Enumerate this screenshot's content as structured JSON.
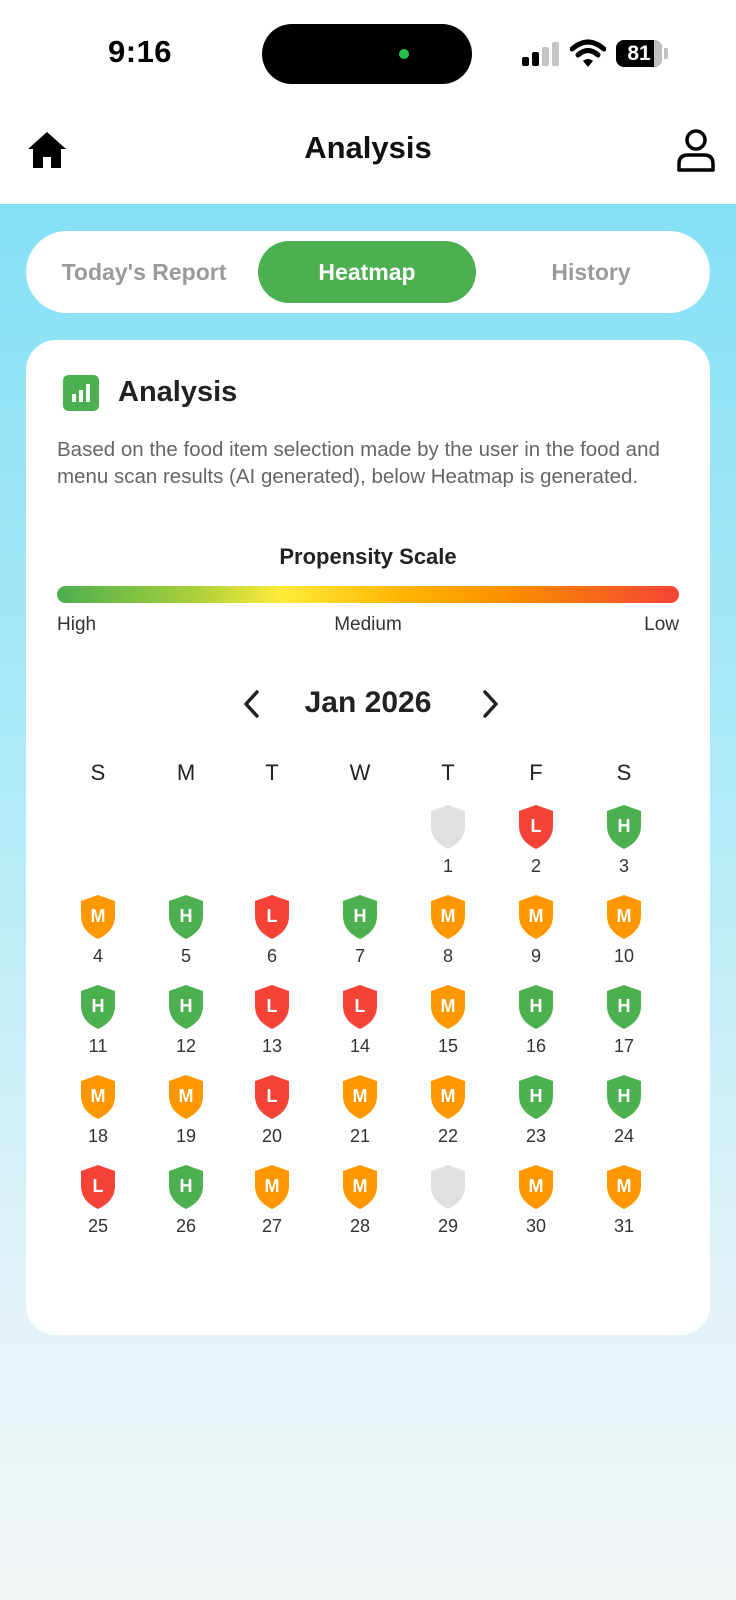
{
  "status_bar": {
    "time": "9:16",
    "battery": "81"
  },
  "header": {
    "title": "Analysis"
  },
  "tabs": [
    {
      "label": "Today's Report",
      "active": false
    },
    {
      "label": "Heatmap",
      "active": true
    },
    {
      "label": "History",
      "active": false
    }
  ],
  "card": {
    "title": "Analysis",
    "description": "Based on the food item selection made by the user in the food and menu scan results (AI generated), below Heatmap is generated.",
    "scale": {
      "title": "Propensity Scale",
      "high": "High",
      "medium": "Medium",
      "low": "Low"
    }
  },
  "calendar": {
    "month_label": "Jan 2026",
    "weekdays": [
      "S",
      "M",
      "T",
      "W",
      "T",
      "F",
      "S"
    ],
    "first_weekday_index": 4,
    "days": [
      {
        "day": "1",
        "level": ""
      },
      {
        "day": "2",
        "level": "L"
      },
      {
        "day": "3",
        "level": "H"
      },
      {
        "day": "4",
        "level": "M"
      },
      {
        "day": "5",
        "level": "H"
      },
      {
        "day": "6",
        "level": "L"
      },
      {
        "day": "7",
        "level": "H"
      },
      {
        "day": "8",
        "level": "M"
      },
      {
        "day": "9",
        "level": "M"
      },
      {
        "day": "10",
        "level": "M"
      },
      {
        "day": "11",
        "level": "H"
      },
      {
        "day": "12",
        "level": "H"
      },
      {
        "day": "13",
        "level": "L"
      },
      {
        "day": "14",
        "level": "L"
      },
      {
        "day": "15",
        "level": "M"
      },
      {
        "day": "16",
        "level": "H"
      },
      {
        "day": "17",
        "level": "H"
      },
      {
        "day": "18",
        "level": "M"
      },
      {
        "day": "19",
        "level": "M"
      },
      {
        "day": "20",
        "level": "L"
      },
      {
        "day": "21",
        "level": "M"
      },
      {
        "day": "22",
        "level": "M"
      },
      {
        "day": "23",
        "level": "H"
      },
      {
        "day": "24",
        "level": "H"
      },
      {
        "day": "25",
        "level": "L"
      },
      {
        "day": "26",
        "level": "H"
      },
      {
        "day": "27",
        "level": "M"
      },
      {
        "day": "28",
        "level": "M"
      },
      {
        "day": "29",
        "level": ""
      },
      {
        "day": "30",
        "level": "M"
      },
      {
        "day": "31",
        "level": "M"
      }
    ]
  },
  "colors": {
    "accent_green": "#4caf50",
    "high": "#4caf50",
    "medium": "#ff9800",
    "low": "#f44336",
    "no_data": "#e0e0e0"
  },
  "icons": {
    "home": "home-icon",
    "profile": "profile-icon",
    "analysis": "bar-chart-icon",
    "prev": "chevron-left-icon",
    "next": "chevron-right-icon",
    "day_marker": "shield-icon"
  }
}
